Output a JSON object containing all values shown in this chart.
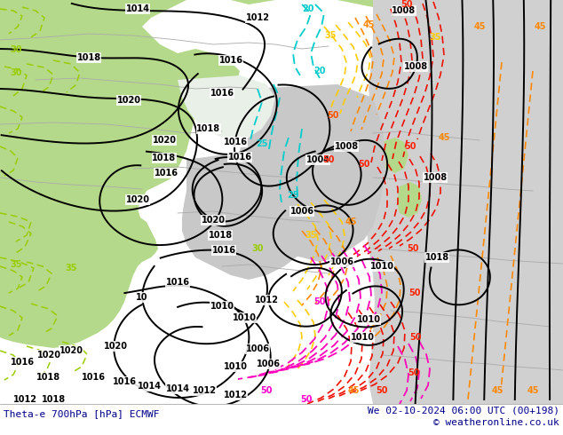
{
  "title_left": "Theta-e 700hPa [hPa] ECMWF",
  "title_right": "We 02-10-2024 06:00 UTC (00+198)",
  "copyright": "© weatheronline.co.uk",
  "bg_color": "#ffffff",
  "text_color": "#00008B",
  "figsize": [
    6.34,
    4.9
  ],
  "dpi": 100,
  "land_green": "#b5d98a",
  "land_green2": "#90cc60",
  "gray_sea": "#c8c8c8",
  "gray_light": "#d8d8d8",
  "white_area": "#f0f0f0"
}
